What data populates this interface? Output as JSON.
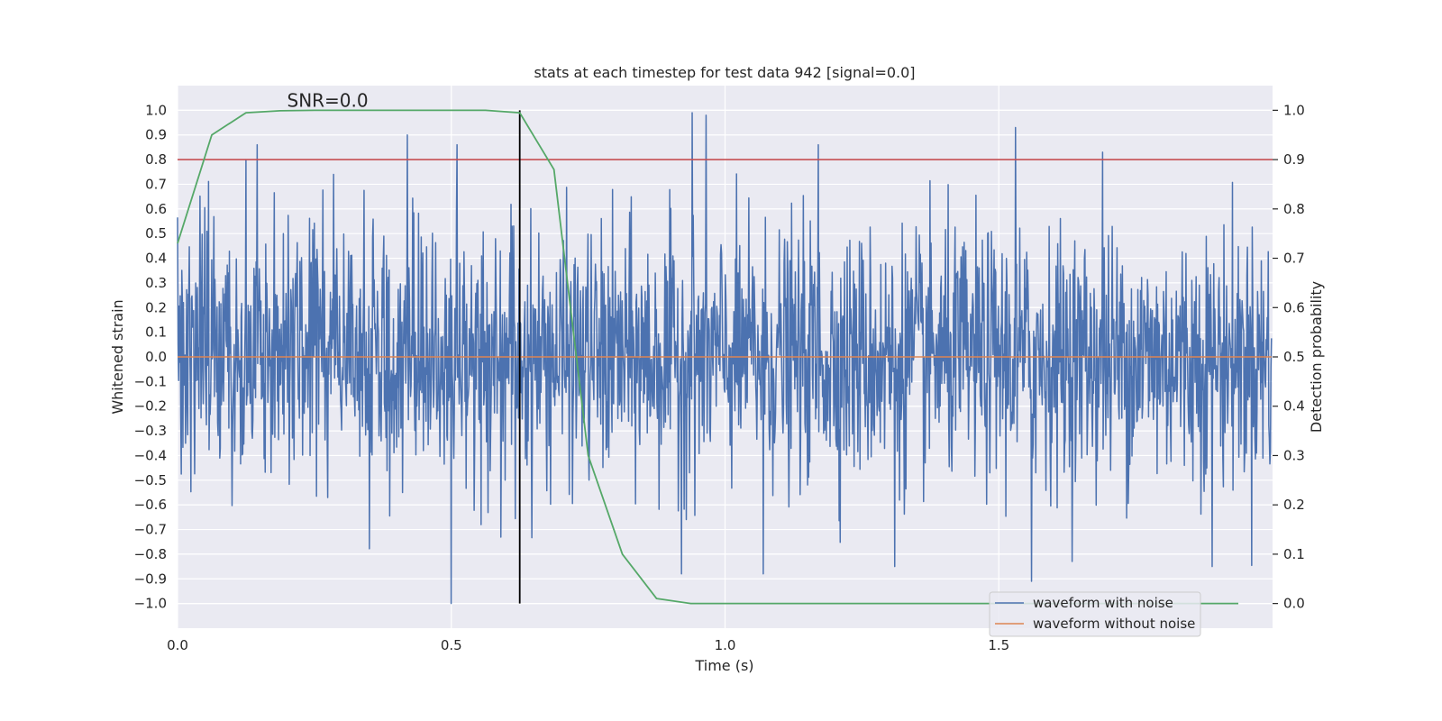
{
  "chart_data": {
    "type": "line",
    "title": "stats at each timestep for test data 942 [signal=0.0]",
    "xlabel": "Time (s)",
    "ylabel_left": "Whitened strain",
    "ylabel_right": "Detection probability",
    "xlim": [
      0.0,
      2.0
    ],
    "ylim_left": [
      -1.1,
      1.1
    ],
    "ylim_right": [
      -0.05,
      1.05
    ],
    "x_ticks": [
      0.0,
      0.5,
      1.0,
      1.5
    ],
    "x_tick_labels": [
      "0.0",
      "0.5",
      "1.0",
      "1.5"
    ],
    "y_left_ticks": [
      -1.0,
      -0.9,
      -0.8,
      -0.7,
      -0.6,
      -0.5,
      -0.4,
      -0.3,
      -0.2,
      -0.1,
      0.0,
      0.1,
      0.2,
      0.3,
      0.4,
      0.5,
      0.6,
      0.7,
      0.8,
      0.9,
      1.0
    ],
    "y_left_tick_labels": [
      "−1.0",
      "−0.9",
      "−0.8",
      "−0.7",
      "−0.6",
      "−0.5",
      "−0.4",
      "−0.3",
      "−0.2",
      "−0.1",
      "0.0",
      "0.1",
      "0.2",
      "0.3",
      "0.4",
      "0.5",
      "0.6",
      "0.7",
      "0.8",
      "0.9",
      "1.0"
    ],
    "y_right_ticks": [
      0.0,
      0.1,
      0.2,
      0.3,
      0.4,
      0.5,
      0.6,
      0.7,
      0.8,
      0.9,
      1.0
    ],
    "y_right_tick_labels": [
      "0.0",
      "0.1",
      "0.2",
      "0.3",
      "0.4",
      "0.5",
      "0.6",
      "0.7",
      "0.8",
      "0.9",
      "1.0"
    ],
    "grid": true,
    "legend_position": "bottom-right",
    "annotation": "SNR=0.0",
    "annotation_position": {
      "x": 0.2,
      "y": 1.0
    },
    "series": [
      {
        "name": "waveform with noise",
        "axis": "left",
        "color": "#4c72b0",
        "x_start": 0.0,
        "x_end": 1.998,
        "sample_count": 2048,
        "y_range": [
          -1.0,
          0.99
        ],
        "peaks": [
          {
            "x": 0.125,
            "y": 0.8
          },
          {
            "x": 0.145,
            "y": 0.86
          },
          {
            "x": 0.285,
            "y": 0.74
          },
          {
            "x": 0.42,
            "y": 0.9
          },
          {
            "x": 0.51,
            "y": 0.86
          },
          {
            "x": 0.94,
            "y": 0.99
          },
          {
            "x": 0.965,
            "y": 0.98
          },
          {
            "x": 1.17,
            "y": 0.86
          },
          {
            "x": 1.53,
            "y": 0.93
          },
          {
            "x": 1.69,
            "y": 0.83
          },
          {
            "x": 0.5,
            "y": -1.0
          },
          {
            "x": 0.92,
            "y": -0.88
          },
          {
            "x": 1.07,
            "y": -0.88
          },
          {
            "x": 1.56,
            "y": -0.91
          },
          {
            "x": 1.31,
            "y": -0.85
          },
          {
            "x": 1.89,
            "y": -0.85
          }
        ]
      },
      {
        "name": "waveform without noise",
        "axis": "left",
        "color": "#dd8452",
        "x": [
          0.0,
          1.998
        ],
        "y": [
          0.0,
          0.0
        ]
      },
      {
        "name": "",
        "axis": "right",
        "color": "#55a868",
        "x": [
          0.0,
          0.0625,
          0.125,
          0.1875,
          0.25,
          0.3125,
          0.375,
          0.4375,
          0.5,
          0.5625,
          0.625,
          0.6875,
          0.75,
          0.8125,
          0.875,
          0.9375,
          1.0,
          1.0625,
          1.125,
          1.1875,
          1.25,
          1.3125,
          1.375,
          1.4375,
          1.5,
          1.5625,
          1.625,
          1.6875,
          1.75,
          1.8125,
          1.875,
          1.9375
        ],
        "y": [
          0.73,
          0.95,
          0.995,
          0.999,
          1.0,
          1.0,
          1.0,
          1.0,
          1.0,
          1.0,
          0.995,
          0.88,
          0.3,
          0.1,
          0.01,
          0.0,
          0.0,
          0.0,
          0.0,
          0.0,
          0.0,
          0.0,
          0.0,
          0.0,
          0.0,
          0.0,
          0.0,
          0.0,
          0.0,
          0.0,
          0.0,
          0.0
        ]
      }
    ],
    "reference_lines": [
      {
        "orientation": "horizontal",
        "axis": "right",
        "value": 0.9,
        "color": "#c44e52"
      },
      {
        "orientation": "vertical",
        "value": 0.625,
        "range_right": [
          0.0,
          1.0
        ],
        "color": "#000000"
      }
    ]
  }
}
